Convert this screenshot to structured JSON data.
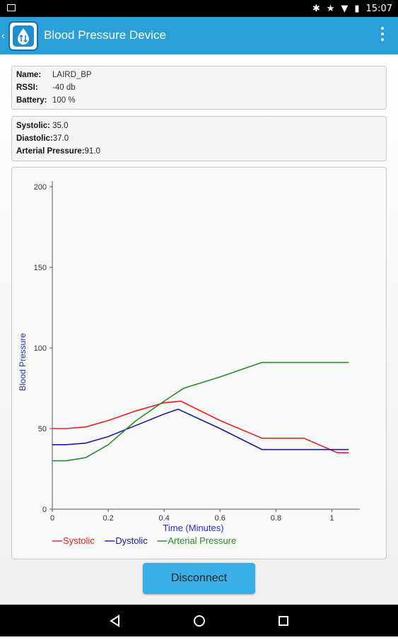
{
  "status_bar": {
    "time": "15:07",
    "icons": [
      "bluetooth-icon",
      "star-icon",
      "wifi-icon",
      "battery-icon"
    ]
  },
  "app_bar": {
    "title": "Blood Pressure Device"
  },
  "device": {
    "name_label": "Name:",
    "name_value": "LAIRD_BP",
    "rssi_label": "RSSI:",
    "rssi_value": "-40 db",
    "battery_label": "Battery:",
    "battery_value": "100 %"
  },
  "readings": {
    "systolic_label": "Systolic:",
    "systolic_value": "35.0",
    "diastolic_label": "Diastolic:",
    "diastolic_value": "37.0",
    "arterial_label": "Arterial Pressure:",
    "arterial_value": "91.0"
  },
  "chart_data": {
    "type": "line",
    "xlabel": "Time (Minutes)",
    "ylabel": "Blood Pressure",
    "xlim": [
      0,
      1.1
    ],
    "ylim": [
      0,
      200
    ],
    "x_ticks": [
      "0",
      "0.2",
      "0.4",
      "0.6",
      "0.8",
      "1"
    ],
    "y_ticks": [
      "0",
      "50",
      "100",
      "150",
      "200"
    ],
    "legend_position": "bottom-left",
    "series": [
      {
        "name": "Systolic",
        "color": "#ee1c1c",
        "x": [
          0,
          0.05,
          0.12,
          0.2,
          0.3,
          0.4,
          0.46,
          0.6,
          0.75,
          0.9,
          1.02,
          1.06
        ],
        "y": [
          50,
          50,
          51,
          55,
          61,
          66,
          67,
          55,
          44,
          44,
          35,
          35
        ]
      },
      {
        "name": "Dystolic",
        "color": "#1a1aaa",
        "x": [
          0,
          0.05,
          0.12,
          0.2,
          0.3,
          0.4,
          0.45,
          0.6,
          0.75,
          0.9,
          1.06
        ],
        "y": [
          40,
          40,
          41,
          45,
          52,
          59,
          62,
          50,
          37,
          37,
          37
        ]
      },
      {
        "name": "Arterial Pressure",
        "color": "#2a8a2a",
        "x": [
          0,
          0.05,
          0.12,
          0.2,
          0.3,
          0.4,
          0.47,
          0.6,
          0.75,
          0.9,
          1.06
        ],
        "y": [
          30,
          30,
          32,
          40,
          55,
          67,
          75,
          82,
          91,
          91,
          91
        ]
      }
    ]
  },
  "actions": {
    "disconnect_label": "Disconnect"
  }
}
